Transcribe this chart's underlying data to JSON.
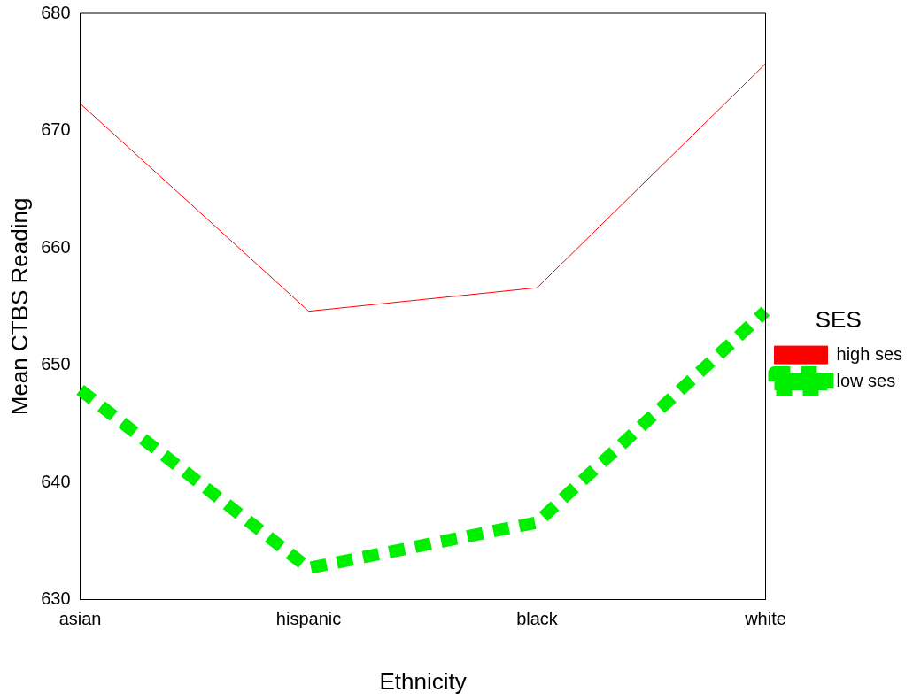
{
  "chart_data": {
    "type": "line",
    "xlabel": "Ethnicity",
    "ylabel": "Mean CTBS Reading",
    "legend_title": "SES",
    "legend": "right",
    "categories": [
      "asian",
      "hispanic",
      "black",
      "white"
    ],
    "series": [
      {
        "name": "high ses",
        "color": "#ff0000",
        "line_style": "solid",
        "values": [
          672.3,
          654.6,
          656.6,
          675.7
        ]
      },
      {
        "name": "low ses",
        "color": "#00ee00",
        "line_style": "dashed",
        "values": [
          647.9,
          632.7,
          636.6,
          654.6
        ]
      }
    ],
    "ylim": [
      630,
      680
    ],
    "yticks": [
      630,
      640,
      650,
      660,
      670,
      680
    ],
    "grid": false,
    "marker": "none"
  }
}
